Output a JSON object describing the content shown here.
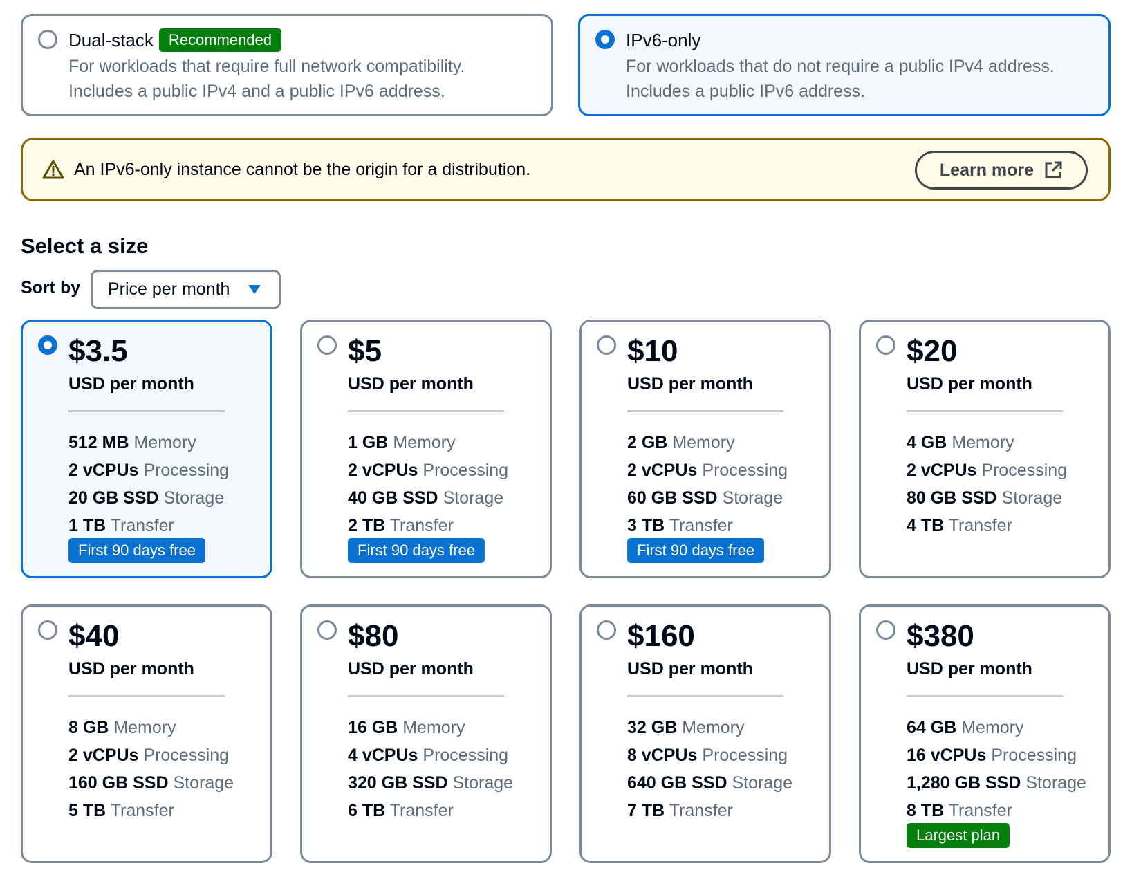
{
  "network": {
    "dual": {
      "title": "Dual-stack",
      "badge": "Recommended",
      "desc1": "For workloads that require full network compatibility.",
      "desc2": "Includes a public IPv4 and a public IPv6 address.",
      "selected": false
    },
    "ipv6": {
      "title": "IPv6-only",
      "desc1": "For workloads that do not require a public IPv4 address.",
      "desc2": "Includes a public IPv6 address.",
      "selected": true
    }
  },
  "warning": {
    "text": "An IPv6-only instance cannot be the origin for a distribution.",
    "button": "Learn more"
  },
  "size": {
    "heading": "Select a size",
    "sort_label": "Sort by",
    "sort_value": "Price per month"
  },
  "plans": [
    {
      "price": "$3.5",
      "per": "USD per month",
      "selected": true,
      "memory": "512 MB",
      "memory_label": "Memory",
      "cpu": "2 vCPUs",
      "cpu_label": "Processing",
      "storage": "20 GB SSD",
      "storage_label": "Storage",
      "transfer": "1 TB",
      "transfer_label": "Transfer",
      "tag": "First 90 days free",
      "tag_color": "blue"
    },
    {
      "price": "$5",
      "per": "USD per month",
      "selected": false,
      "memory": "1 GB",
      "memory_label": "Memory",
      "cpu": "2 vCPUs",
      "cpu_label": "Processing",
      "storage": "40 GB SSD",
      "storage_label": "Storage",
      "transfer": "2 TB",
      "transfer_label": "Transfer",
      "tag": "First 90 days free",
      "tag_color": "blue"
    },
    {
      "price": "$10",
      "per": "USD per month",
      "selected": false,
      "memory": "2 GB",
      "memory_label": "Memory",
      "cpu": "2 vCPUs",
      "cpu_label": "Processing",
      "storage": "60 GB SSD",
      "storage_label": "Storage",
      "transfer": "3 TB",
      "transfer_label": "Transfer",
      "tag": "First 90 days free",
      "tag_color": "blue"
    },
    {
      "price": "$20",
      "per": "USD per month",
      "selected": false,
      "memory": "4 GB",
      "memory_label": "Memory",
      "cpu": "2 vCPUs",
      "cpu_label": "Processing",
      "storage": "80 GB SSD",
      "storage_label": "Storage",
      "transfer": "4 TB",
      "transfer_label": "Transfer",
      "tag": "",
      "tag_color": ""
    },
    {
      "price": "$40",
      "per": "USD per month",
      "selected": false,
      "memory": "8 GB",
      "memory_label": "Memory",
      "cpu": "2 vCPUs",
      "cpu_label": "Processing",
      "storage": "160 GB SSD",
      "storage_label": "Storage",
      "transfer": "5 TB",
      "transfer_label": "Transfer",
      "tag": "",
      "tag_color": ""
    },
    {
      "price": "$80",
      "per": "USD per month",
      "selected": false,
      "memory": "16 GB",
      "memory_label": "Memory",
      "cpu": "4 vCPUs",
      "cpu_label": "Processing",
      "storage": "320 GB SSD",
      "storage_label": "Storage",
      "transfer": "6 TB",
      "transfer_label": "Transfer",
      "tag": "",
      "tag_color": ""
    },
    {
      "price": "$160",
      "per": "USD per month",
      "selected": false,
      "memory": "32 GB",
      "memory_label": "Memory",
      "cpu": "8 vCPUs",
      "cpu_label": "Processing",
      "storage": "640 GB SSD",
      "storage_label": "Storage",
      "transfer": "7 TB",
      "transfer_label": "Transfer",
      "tag": "",
      "tag_color": ""
    },
    {
      "price": "$380",
      "per": "USD per month",
      "selected": false,
      "memory": "64 GB",
      "memory_label": "Memory",
      "cpu": "16 vCPUs",
      "cpu_label": "Processing",
      "storage": "1,280 GB SSD",
      "storage_label": "Storage",
      "transfer": "8 TB",
      "transfer_label": "Transfer",
      "tag": "Largest plan",
      "tag_color": "green"
    }
  ],
  "colors": {
    "accent_blue": "#0972d3",
    "success_green": "#037f0c",
    "warning_border": "#8d6605",
    "warning_bg": "#fffce9",
    "selected_bg": "#f2f8fd"
  },
  "icons": {
    "warning": "warning-triangle-icon",
    "external": "external-link-icon",
    "dropdown": "caret-down-icon"
  }
}
